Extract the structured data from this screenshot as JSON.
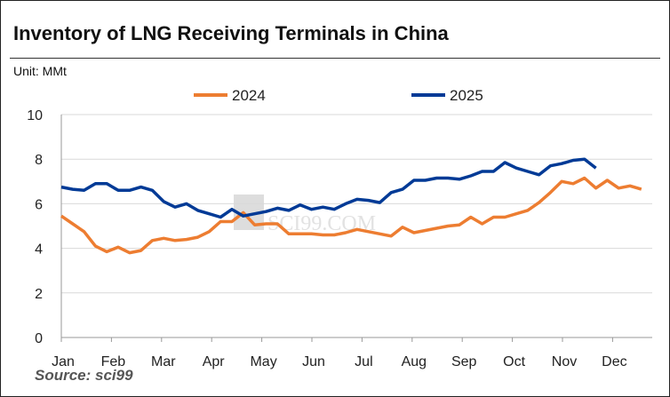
{
  "chart_data": {
    "type": "line",
    "title": "Inventory of LNG Receiving Terminals in China",
    "unit": "Unit: MMt",
    "source": "Source: sci99",
    "watermark": "SCI99.COM",
    "ylim": [
      0,
      10
    ],
    "yticks": [
      "0",
      "2",
      "4",
      "6",
      "8",
      "10"
    ],
    "xticks": [
      "Jan",
      "Feb",
      "Mar",
      "Apr",
      "May",
      "Jun",
      "Jul",
      "Aug",
      "Sep",
      "Oct",
      "Nov",
      "Dec"
    ],
    "legend_position": "top",
    "x_unit": "week",
    "series": [
      {
        "name": "2024",
        "color": "#ED7D31",
        "values": [
          5.45,
          5.1,
          4.75,
          4.1,
          3.85,
          4.05,
          3.8,
          3.9,
          4.35,
          4.45,
          4.35,
          4.4,
          4.5,
          4.75,
          5.2,
          5.2,
          5.6,
          5.05,
          5.1,
          5.1,
          4.65,
          4.65,
          4.65,
          4.6,
          4.6,
          4.7,
          4.85,
          4.75,
          4.65,
          4.55,
          4.95,
          4.7,
          4.8,
          4.9,
          5.0,
          5.05,
          5.4,
          5.1,
          5.4,
          5.4,
          5.55,
          5.7,
          6.05,
          6.5,
          7.0,
          6.9,
          7.15,
          6.7,
          7.05,
          6.7,
          6.8,
          6.65
        ]
      },
      {
        "name": "2025",
        "color": "#003A96",
        "values": [
          6.75,
          6.65,
          6.6,
          6.9,
          6.9,
          6.6,
          6.6,
          6.75,
          6.6,
          6.1,
          5.85,
          6.0,
          5.7,
          5.55,
          5.4,
          5.75,
          5.45,
          5.55,
          5.65,
          5.8,
          5.7,
          5.95,
          5.75,
          5.85,
          5.75,
          6.0,
          6.2,
          6.15,
          6.05,
          6.5,
          6.65,
          7.05,
          7.05,
          7.15,
          7.15,
          7.1,
          7.25,
          7.45,
          7.45,
          7.85,
          7.6,
          7.45,
          7.3,
          7.7,
          7.8,
          7.95,
          8.0,
          7.6
        ]
      }
    ]
  }
}
